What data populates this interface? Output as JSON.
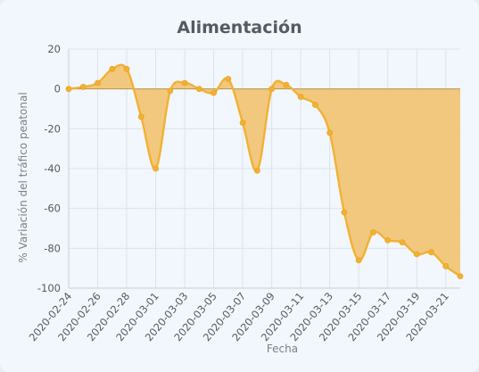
{
  "chart_data": {
    "type": "area",
    "title": "Alimentación",
    "xlabel": "Fecha",
    "ylabel": "% Variación del tráfico peatonal",
    "ylim": [
      -100,
      20
    ],
    "yticks": [
      20,
      0,
      -20,
      -40,
      -60,
      -80,
      -100
    ],
    "grid": true,
    "x": [
      "2020-02-24",
      "2020-02-25",
      "2020-02-26",
      "2020-02-27",
      "2020-02-28",
      "2020-02-29",
      "2020-03-01",
      "2020-03-02",
      "2020-03-03",
      "2020-03-04",
      "2020-03-05",
      "2020-03-06",
      "2020-03-07",
      "2020-03-08",
      "2020-03-09",
      "2020-03-10",
      "2020-03-11",
      "2020-03-12",
      "2020-03-13",
      "2020-03-14",
      "2020-03-15",
      "2020-03-16",
      "2020-03-17",
      "2020-03-18",
      "2020-03-19",
      "2020-03-20",
      "2020-03-21",
      "2020-03-22"
    ],
    "xticks": [
      "2020-02-24",
      "2020-02-26",
      "2020-02-28",
      "2020-03-01",
      "2020-03-03",
      "2020-03-05",
      "2020-03-07",
      "2020-03-09",
      "2020-03-11",
      "2020-03-13",
      "2020-03-15",
      "2020-03-17",
      "2020-03-19",
      "2020-03-21"
    ],
    "series": [
      {
        "values": [
          0,
          1,
          3,
          10,
          10,
          -14,
          -40,
          -1,
          3,
          0,
          -2,
          5,
          -17,
          -41,
          0,
          2,
          -4,
          -8,
          -22,
          -62,
          -86,
          -72,
          -76,
          -77,
          -83,
          -82,
          -89,
          -94
        ],
        "color": "#f2b134",
        "fill": "#f0c577"
      }
    ]
  }
}
